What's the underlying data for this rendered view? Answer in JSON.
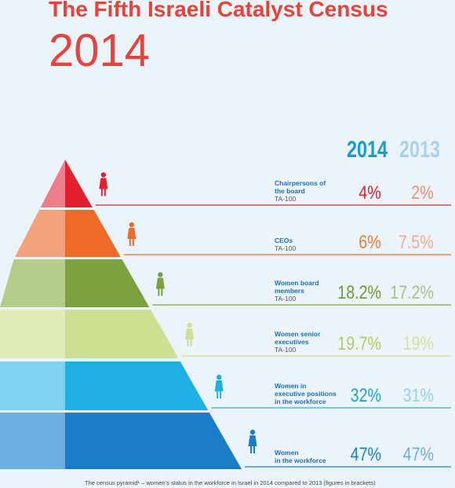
{
  "header": {
    "title": "The Fifth Israeli Catalyst Census",
    "year": "2014"
  },
  "columns": {
    "current": "2014",
    "previous": "2013"
  },
  "caption": "The census pyramid¹ – women’s status in the workforce in Israel in 2014 compared to 2013 (figures in brackets)",
  "chart_data": {
    "type": "table",
    "title": "The Fifth Israeli Catalyst Census",
    "columns": [
      "2014",
      "2013"
    ],
    "rows": [
      {
        "label": "Chairpersons of the board",
        "sub": "TA-100",
        "v2014": "4%",
        "v2013": "2%",
        "value2014": 4,
        "value2013": 2,
        "color_light": "#ee7f8a",
        "color_dark": "#e3202f",
        "color_value": "#e3202f",
        "color_prev": "#ef8e6c"
      },
      {
        "label": "CEOs",
        "sub": "TA-100",
        "v2014": "6%",
        "v2013": "7.5%",
        "value2014": 6,
        "value2013": 7.5,
        "color_light": "#f4a27c",
        "color_dark": "#ef6a27",
        "color_value": "#ef7a2f",
        "color_prev": "#f4aa8a"
      },
      {
        "label": "Women board members",
        "sub": "TA-100",
        "v2014": "18.2%",
        "v2013": "17.2%",
        "value2014": 18.2,
        "value2013": 17.2,
        "color_light": "#b4cd8a",
        "color_dark": "#7aa13d",
        "color_value": "#6e9a32",
        "color_prev": "#a6c283"
      },
      {
        "label": "Women senior executives",
        "sub": "TA-100",
        "v2014": "19.7%",
        "v2013": "19%",
        "value2014": 19.7,
        "value2013": 19,
        "color_light": "#e0ebb8",
        "color_dark": "#cddf93",
        "color_value": "#b3cc63",
        "color_prev": "#d2e09d"
      },
      {
        "label": "Women in executive positions in the workforce",
        "sub": "",
        "v2014": "32%",
        "v2013": "31%",
        "value2014": 32,
        "value2013": 31,
        "color_light": "#7fd0ee",
        "color_dark": "#1eb0e2",
        "color_value": "#1ca3d6",
        "color_prev": "#8fd3ee"
      },
      {
        "label": "Women in the workforce",
        "sub": "",
        "v2014": "47%",
        "v2013": "47%",
        "value2014": 47,
        "value2013": 47,
        "color_light": "#6aaee0",
        "color_dark": "#1a7ec9",
        "color_value": "#1a7ec9",
        "color_prev": "#6aaee0"
      }
    ]
  }
}
